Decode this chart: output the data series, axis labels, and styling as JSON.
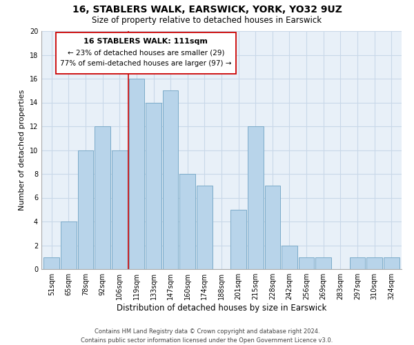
{
  "title": "16, STABLERS WALK, EARSWICK, YORK, YO32 9UZ",
  "subtitle": "Size of property relative to detached houses in Earswick",
  "xlabel": "Distribution of detached houses by size in Earswick",
  "ylabel": "Number of detached properties",
  "bar_labels": [
    "51sqm",
    "65sqm",
    "78sqm",
    "92sqm",
    "106sqm",
    "119sqm",
    "133sqm",
    "147sqm",
    "160sqm",
    "174sqm",
    "188sqm",
    "201sqm",
    "215sqm",
    "228sqm",
    "242sqm",
    "256sqm",
    "269sqm",
    "283sqm",
    "297sqm",
    "310sqm",
    "324sqm"
  ],
  "bar_values": [
    1,
    4,
    10,
    12,
    10,
    16,
    14,
    15,
    8,
    7,
    0,
    5,
    12,
    7,
    2,
    1,
    1,
    0,
    1,
    1,
    1
  ],
  "bar_color": "#b8d4ea",
  "bar_edge_color": "#7aaac8",
  "vline_x_index": 4.5,
  "vline_color": "#cc0000",
  "ylim": [
    0,
    20
  ],
  "yticks": [
    0,
    2,
    4,
    6,
    8,
    10,
    12,
    14,
    16,
    18,
    20
  ],
  "annotation_text_line1": "16 STABLERS WALK: 111sqm",
  "annotation_text_line2": "← 23% of detached houses are smaller (29)",
  "annotation_text_line3": "77% of semi-detached houses are larger (97) →",
  "footer_line1": "Contains HM Land Registry data © Crown copyright and database right 2024.",
  "footer_line2": "Contains public sector information licensed under the Open Government Licence v3.0.",
  "background_color": "#ffffff",
  "plot_bg_color": "#e8f0f8",
  "grid_color": "#c8d8e8",
  "title_fontsize": 10,
  "subtitle_fontsize": 8.5,
  "ylabel_fontsize": 8,
  "xlabel_fontsize": 8.5,
  "tick_fontsize": 7,
  "footer_fontsize": 6,
  "annot_fontsize_title": 8,
  "annot_fontsize_body": 7.5
}
